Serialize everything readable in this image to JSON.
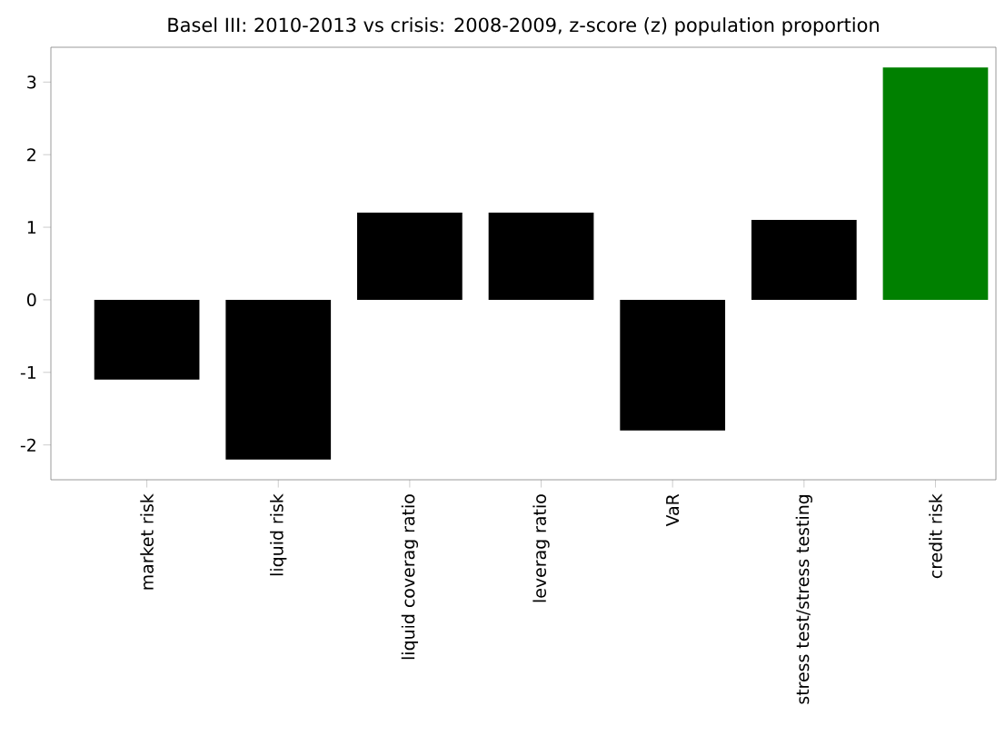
{
  "chart_data": {
    "type": "bar",
    "title": "Basel III: 2010-2013 vs crisis: 2008-2009, z-score (z) population proportion",
    "categories": [
      "market risk",
      "liquid risk",
      "liquid coverag ratio",
      "leverag ratio",
      "VaR",
      "stress test/stress testing",
      "credit risk"
    ],
    "values": [
      -1.1,
      -2.2,
      1.2,
      1.2,
      -1.8,
      1.1,
      3.2
    ],
    "colors": [
      "#000000",
      "#000000",
      "#000000",
      "#000000",
      "#000000",
      "#000000",
      "#008000"
    ],
    "ylim": [
      -2.48,
      3.48
    ],
    "yticks": [
      -2,
      -1,
      0,
      1,
      2,
      3
    ],
    "grid": false
  }
}
